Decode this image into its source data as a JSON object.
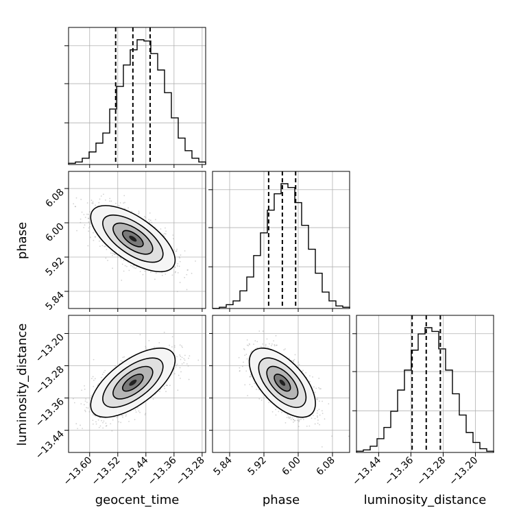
{
  "chart_data": {
    "type": "corner",
    "parameters": [
      "geocent_time",
      "phase",
      "luminosity_distance"
    ],
    "axis_labels": {
      "geocent_time": "geocent_time",
      "phase": "phase",
      "luminosity_distance": "luminosity_distance"
    },
    "ranges": {
      "geocent_time": [
        -13.66,
        -13.27
      ],
      "phase": [
        5.8,
        6.12
      ],
      "luminosity_distance": [
        -13.495,
        -13.155
      ]
    },
    "ticks": {
      "geocent_time": [
        {
          "v": -13.6,
          "label": "−13.60"
        },
        {
          "v": -13.52,
          "label": "−13.52"
        },
        {
          "v": -13.44,
          "label": "−13.44"
        },
        {
          "v": -13.36,
          "label": "−13.36"
        },
        {
          "v": -13.28,
          "label": "−13.28"
        }
      ],
      "phase": [
        {
          "v": 5.84,
          "label": "5.84"
        },
        {
          "v": 5.92,
          "label": "5.92"
        },
        {
          "v": 6.0,
          "label": "6.00"
        },
        {
          "v": 6.08,
          "label": "6.08"
        }
      ],
      "luminosity_distance": [
        {
          "v": -13.44,
          "label": "−13.44"
        },
        {
          "v": -13.36,
          "label": "−13.36"
        },
        {
          "v": -13.28,
          "label": "−13.28"
        },
        {
          "v": -13.2,
          "label": "−13.20"
        }
      ]
    },
    "histograms": {
      "geocent_time": {
        "edges_range": [
          -13.66,
          -13.27
        ],
        "counts": [
          1,
          2,
          5,
          10,
          17,
          25,
          44,
          62,
          79,
          91,
          99,
          98,
          88,
          75,
          57,
          37,
          21,
          11,
          5,
          2
        ]
      },
      "phase": {
        "edges_range": [
          5.8,
          6.12
        ],
        "counts": [
          0,
          1,
          3,
          6,
          14,
          25,
          42,
          60,
          78,
          91,
          99,
          96,
          84,
          66,
          47,
          28,
          13,
          6,
          2,
          1
        ]
      },
      "luminosity_distance": {
        "edges_range": [
          -13.495,
          -13.155
        ],
        "counts": [
          1,
          2,
          5,
          11,
          20,
          33,
          50,
          66,
          82,
          95,
          100,
          97,
          83,
          66,
          47,
          30,
          16,
          8,
          3,
          1
        ]
      }
    },
    "quantiles": {
      "geocent_time": {
        "q16": -13.526,
        "median": -13.477,
        "q84": -13.428
      },
      "phase": {
        "q16": 5.931,
        "median": 5.963,
        "q84": 5.994
      },
      "luminosity_distance": {
        "q16": -13.357,
        "median": -13.322,
        "q84": -13.287
      }
    },
    "correlations": {
      "phase_vs_geocent_time": -0.65,
      "luminosity_distance_vs_geocent_time": 0.65,
      "luminosity_distance_vs_phase": -0.6
    },
    "grid": true,
    "colors": {
      "ink": "#000000",
      "grid": "#b0b0b0",
      "scatter": "#9a9a9a"
    }
  }
}
